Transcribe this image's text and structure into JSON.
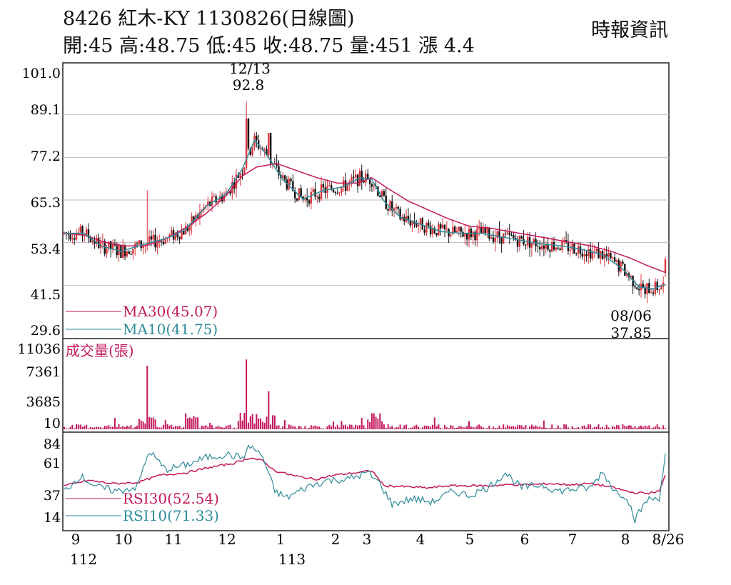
{
  "header": {
    "title": "8426  紅木-KY 1130826(日線圖)",
    "quote": "開:45 高:48.75 低:45 收:48.75 量:451 漲 4.4",
    "source": "時報資訊"
  },
  "colors": {
    "candle_up": "#d9363e",
    "candle_down": "#111111",
    "ma30": "#c2185b",
    "ma10": "#2e8b9a",
    "volume": "#c2185b",
    "rsi30": "#c2185b",
    "rsi10": "#2e8b9a"
  },
  "chart_data": [
    {
      "type": "candlestick",
      "title": "8426  紅木-KY 1130826(日線圖)",
      "y_ticks": [
        "101.0",
        "89.1",
        "77.2",
        "65.3",
        "53.4",
        "41.5",
        "29.6"
      ],
      "ylim": [
        29.6,
        101.0
      ],
      "x_month_labels": [
        "9",
        "10",
        "11",
        "12",
        "1",
        "2",
        "3",
        "4",
        "5",
        "6",
        "7",
        "8",
        "8/26"
      ],
      "x_year_labels": [
        "112",
        "113"
      ],
      "annotations": [
        {
          "label_date": "12/13",
          "label_value": "92.8",
          "kind": "high"
        },
        {
          "label_date": "08/06",
          "label_value": "37.85",
          "kind": "low"
        }
      ],
      "legend": [
        {
          "name": "MA30(45.07)",
          "color": "#c2185b"
        },
        {
          "name": "MA10(41.75)",
          "color": "#2e8b9a"
        }
      ],
      "ma_anchors": {
        "ma30": [
          [
            0,
            56.0
          ],
          [
            10,
            55.5
          ],
          [
            20,
            53.5
          ],
          [
            30,
            52.5
          ],
          [
            40,
            52.5
          ],
          [
            50,
            54.5
          ],
          [
            60,
            57.5
          ],
          [
            70,
            61.5
          ],
          [
            80,
            66.5
          ],
          [
            88,
            72.0
          ],
          [
            95,
            74.5
          ],
          [
            105,
            75.5
          ],
          [
            115,
            73.5
          ],
          [
            125,
            71.5
          ],
          [
            135,
            70.0
          ],
          [
            145,
            70.0
          ],
          [
            152,
            71.5
          ],
          [
            160,
            68.5
          ],
          [
            170,
            65.0
          ],
          [
            180,
            62.5
          ],
          [
            190,
            60.0
          ],
          [
            200,
            58.0
          ],
          [
            210,
            57.5
          ],
          [
            220,
            56.5
          ],
          [
            230,
            55.5
          ],
          [
            240,
            54.5
          ],
          [
            250,
            53.5
          ],
          [
            260,
            52.5
          ],
          [
            270,
            51.0
          ],
          [
            280,
            49.0
          ],
          [
            288,
            47.0
          ],
          [
            297,
            45.07
          ]
        ],
        "ma10": [
          [
            0,
            56.0
          ],
          [
            10,
            56.0
          ],
          [
            18,
            52.5
          ],
          [
            28,
            51.0
          ],
          [
            40,
            53.0
          ],
          [
            50,
            54.5
          ],
          [
            60,
            57.0
          ],
          [
            70,
            63.5
          ],
          [
            80,
            67.0
          ],
          [
            88,
            74.0
          ],
          [
            94,
            82.0
          ],
          [
            100,
            78.0
          ],
          [
            108,
            71.0
          ],
          [
            118,
            65.5
          ],
          [
            128,
            68.0
          ],
          [
            138,
            69.0
          ],
          [
            146,
            71.5
          ],
          [
            152,
            71.0
          ],
          [
            158,
            65.0
          ],
          [
            166,
            60.5
          ],
          [
            176,
            58.5
          ],
          [
            186,
            56.5
          ],
          [
            196,
            56.0
          ],
          [
            206,
            56.0
          ],
          [
            216,
            55.0
          ],
          [
            226,
            54.0
          ],
          [
            236,
            53.0
          ],
          [
            246,
            52.5
          ],
          [
            256,
            51.5
          ],
          [
            266,
            50.0
          ],
          [
            276,
            46.0
          ],
          [
            284,
            41.0
          ],
          [
            291,
            40.5
          ],
          [
            297,
            41.75
          ]
        ]
      }
    },
    {
      "type": "bar",
      "title": "成交量(張)",
      "y_ticks": [
        "11036",
        "7361",
        "3685",
        "10"
      ],
      "ylim": [
        10,
        11036
      ],
      "spikes": [
        {
          "day": 41,
          "value": 9000
        },
        {
          "day": 90,
          "value": 9900
        },
        {
          "day": 101,
          "value": 5400
        }
      ],
      "base_level": 450
    },
    {
      "type": "line",
      "y_ticks": [
        "84",
        "61",
        "37",
        "14"
      ],
      "ylim": [
        14,
        84
      ],
      "legend": [
        {
          "name": "RSI30(52.54)",
          "color": "#c2185b"
        },
        {
          "name": "RSI10(71.33)",
          "color": "#2e8b9a"
        }
      ],
      "rsi30_anchors": [
        [
          0,
          43
        ],
        [
          12,
          48
        ],
        [
          24,
          45
        ],
        [
          36,
          46
        ],
        [
          48,
          53
        ],
        [
          60,
          55
        ],
        [
          72,
          60
        ],
        [
          84,
          64
        ],
        [
          92,
          69
        ],
        [
          98,
          66
        ],
        [
          104,
          57
        ],
        [
          114,
          52
        ],
        [
          124,
          49
        ],
        [
          134,
          53
        ],
        [
          144,
          55
        ],
        [
          152,
          57
        ],
        [
          158,
          43
        ],
        [
          170,
          42
        ],
        [
          180,
          41
        ],
        [
          190,
          43
        ],
        [
          200,
          43
        ],
        [
          210,
          43
        ],
        [
          220,
          44
        ],
        [
          230,
          44
        ],
        [
          240,
          45
        ],
        [
          250,
          44
        ],
        [
          260,
          45
        ],
        [
          270,
          42
        ],
        [
          280,
          37
        ],
        [
          288,
          36
        ],
        [
          294,
          38
        ],
        [
          297,
          52.54
        ]
      ],
      "rsi10_anchors": [
        [
          0,
          38
        ],
        [
          8,
          52
        ],
        [
          16,
          42
        ],
        [
          26,
          38
        ],
        [
          36,
          42
        ],
        [
          42,
          75
        ],
        [
          50,
          58
        ],
        [
          60,
          62
        ],
        [
          70,
          69
        ],
        [
          80,
          72
        ],
        [
          88,
          69
        ],
        [
          92,
          80
        ],
        [
          98,
          70
        ],
        [
          104,
          38
        ],
        [
          110,
          32
        ],
        [
          120,
          42
        ],
        [
          130,
          48
        ],
        [
          140,
          49
        ],
        [
          150,
          55
        ],
        [
          156,
          45
        ],
        [
          162,
          26
        ],
        [
          172,
          31
        ],
        [
          182,
          28
        ],
        [
          192,
          38
        ],
        [
          200,
          34
        ],
        [
          210,
          42
        ],
        [
          218,
          55
        ],
        [
          226,
          41
        ],
        [
          236,
          44
        ],
        [
          244,
          38
        ],
        [
          252,
          40
        ],
        [
          260,
          41
        ],
        [
          266,
          56
        ],
        [
          272,
          38
        ],
        [
          278,
          33
        ],
        [
          282,
          12
        ],
        [
          288,
          30
        ],
        [
          294,
          32
        ],
        [
          297,
          71.33
        ]
      ]
    }
  ]
}
